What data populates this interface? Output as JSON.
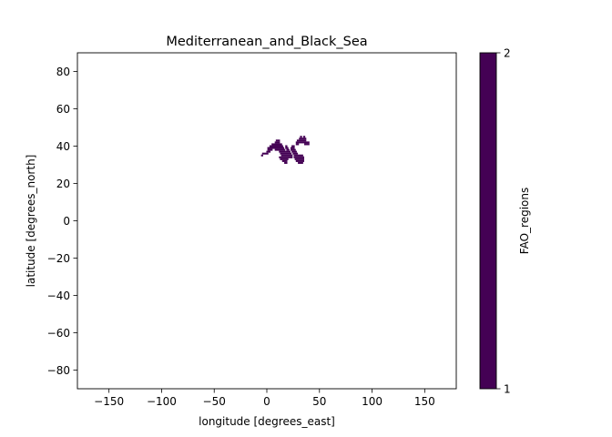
{
  "chart_data": {
    "type": "heatmap",
    "title": "Mediterranean_and_Black_Sea",
    "xlabel": "longitude [degrees_east]",
    "ylabel": "latitude [degrees_north]",
    "xlim": [
      -180,
      180
    ],
    "ylim": [
      -90,
      90
    ],
    "xticks": [
      -150,
      -100,
      -50,
      0,
      50,
      100,
      150
    ],
    "yticks": [
      -80,
      -60,
      -40,
      -20,
      0,
      20,
      40,
      60,
      80
    ],
    "grid": false,
    "grid_resolution_deg": 1,
    "region_value": 1,
    "region_color": "#440154",
    "background_color": "#ffffff",
    "colorbar": {
      "label": "FAO_regions",
      "ticks": [
        "1",
        "2"
      ],
      "range": [
        1,
        2
      ],
      "color": "#440154"
    },
    "cells_by_lat": [
      {
        "lat": 45,
        "lon": [
          [
            32,
            33
          ],
          [
            35,
            36
          ]
        ]
      },
      {
        "lat": 44,
        "lon": [
          [
            31,
            37
          ]
        ]
      },
      {
        "lat": 43,
        "lon": [
          [
            9,
            12
          ],
          [
            29,
            37
          ]
        ]
      },
      {
        "lat": 42,
        "lon": [
          [
            8,
            12
          ],
          [
            28,
            40
          ]
        ]
      },
      {
        "lat": 41,
        "lon": [
          [
            5,
            14
          ],
          [
            28,
            30
          ],
          [
            36,
            40
          ]
        ]
      },
      {
        "lat": 40,
        "lon": [
          [
            3,
            15
          ],
          [
            18,
            19
          ],
          [
            24,
            26
          ]
        ]
      },
      {
        "lat": 39,
        "lon": [
          [
            1,
            16
          ],
          [
            18,
            20
          ],
          [
            23,
            26
          ]
        ]
      },
      {
        "lat": 38,
        "lon": [
          [
            1,
            5
          ],
          [
            8,
            17
          ],
          [
            19,
            21
          ],
          [
            23,
            27
          ]
        ]
      },
      {
        "lat": 37,
        "lon": [
          [
            0,
            3
          ],
          [
            12,
            22
          ],
          [
            24,
            28
          ]
        ]
      },
      {
        "lat": 36,
        "lon": [
          [
            -4,
            1
          ],
          [
            13,
            23
          ],
          [
            25,
            29
          ]
        ]
      },
      {
        "lat": 35,
        "lon": [
          [
            -5,
            -4
          ],
          [
            14,
            24
          ],
          [
            26,
            34
          ]
        ]
      },
      {
        "lat": 34,
        "lon": [
          [
            12,
            24
          ],
          [
            26,
            35
          ]
        ]
      },
      {
        "lat": 33,
        "lon": [
          [
            13,
            20
          ],
          [
            27,
            35
          ]
        ]
      },
      {
        "lat": 32,
        "lon": [
          [
            15,
            19
          ],
          [
            28,
            35
          ]
        ]
      },
      {
        "lat": 31,
        "lon": [
          [
            17,
            19
          ],
          [
            30,
            34
          ]
        ]
      }
    ]
  }
}
